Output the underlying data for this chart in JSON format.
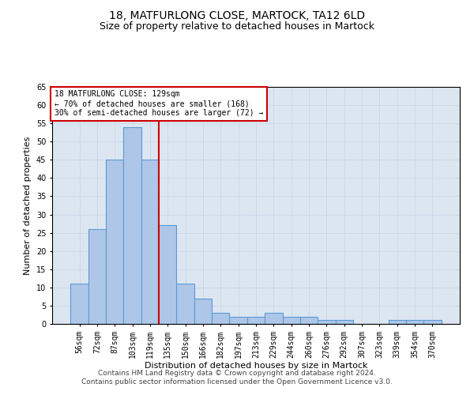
{
  "title": "18, MATFURLONG CLOSE, MARTOCK, TA12 6LD",
  "subtitle": "Size of property relative to detached houses in Martock",
  "xlabel": "Distribution of detached houses by size in Martock",
  "ylabel": "Number of detached properties",
  "categories": [
    "56sqm",
    "72sqm",
    "87sqm",
    "103sqm",
    "119sqm",
    "135sqm",
    "150sqm",
    "166sqm",
    "182sqm",
    "197sqm",
    "213sqm",
    "229sqm",
    "244sqm",
    "260sqm",
    "276sqm",
    "292sqm",
    "307sqm",
    "323sqm",
    "339sqm",
    "354sqm",
    "370sqm"
  ],
  "values": [
    11,
    26,
    45,
    54,
    45,
    27,
    11,
    7,
    3,
    2,
    2,
    3,
    2,
    2,
    1,
    1,
    0,
    0,
    1,
    1,
    1
  ],
  "bar_color": "#aec6e8",
  "bar_edge_color": "#5b9bd5",
  "property_line_x": 4.5,
  "annotation_line1": "18 MATFURLONG CLOSE: 129sqm",
  "annotation_line2": "← 70% of detached houses are smaller (168)",
  "annotation_line3": "30% of semi-detached houses are larger (72) →",
  "annotation_box_color": "#ffffff",
  "annotation_box_edge": "#cc0000",
  "vline_color": "#cc0000",
  "ylim": [
    0,
    65
  ],
  "yticks": [
    0,
    5,
    10,
    15,
    20,
    25,
    30,
    35,
    40,
    45,
    50,
    55,
    60,
    65
  ],
  "grid_color": "#d0d8e8",
  "background_color": "#dce6f1",
  "footer1": "Contains HM Land Registry data © Crown copyright and database right 2024.",
  "footer2": "Contains public sector information licensed under the Open Government Licence v3.0.",
  "title_fontsize": 10,
  "subtitle_fontsize": 9,
  "axis_fontsize": 8,
  "tick_fontsize": 7,
  "footer_fontsize": 6.5,
  "annotation_fontsize": 7
}
